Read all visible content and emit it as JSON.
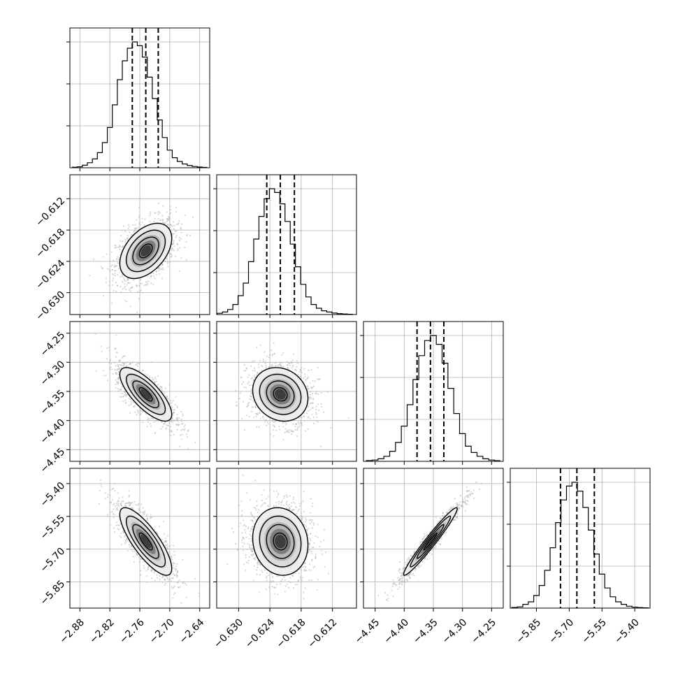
{
  "chart_data": {
    "type": "corner",
    "parameters": [
      {
        "index": 0,
        "tick_labels": [
          "−2.88",
          "−2.82",
          "−2.76",
          "−2.70",
          "−2.64"
        ],
        "ticks": [
          -2.88,
          -2.82,
          -2.76,
          -2.7,
          -2.64
        ],
        "range": [
          -2.9,
          -2.62
        ],
        "quantiles": [
          -2.775,
          -2.748,
          -2.723
        ],
        "hist_centers": [
          -2.89,
          -2.88,
          -2.87,
          -2.86,
          -2.85,
          -2.84,
          -2.83,
          -2.82,
          -2.81,
          -2.8,
          -2.79,
          -2.78,
          -2.77,
          -2.76,
          -2.75,
          -2.74,
          -2.73,
          -2.72,
          -2.71,
          -2.7,
          -2.69,
          -2.68,
          -2.67,
          -2.66,
          -2.65,
          -2.64,
          -2.63
        ],
        "hist_counts": [
          0.004,
          0.008,
          0.02,
          0.04,
          0.07,
          0.12,
          0.2,
          0.32,
          0.5,
          0.7,
          0.85,
          0.95,
          1.0,
          0.97,
          0.88,
          0.72,
          0.55,
          0.38,
          0.24,
          0.14,
          0.08,
          0.05,
          0.03,
          0.018,
          0.01,
          0.006,
          0.003
        ]
      },
      {
        "index": 1,
        "tick_labels": [
          "−0.630",
          "−0.624",
          "−0.618",
          "−0.612"
        ],
        "ticks": [
          -0.63,
          -0.624,
          -0.618,
          -0.612
        ],
        "range": [
          -0.6342,
          -0.6074
        ],
        "quantiles": [
          -0.6246,
          -0.622,
          -0.6193
        ],
        "hist_centers": [
          -0.6336,
          -0.6326,
          -0.6316,
          -0.6306,
          -0.6296,
          -0.6286,
          -0.6276,
          -0.6266,
          -0.6256,
          -0.6246,
          -0.6236,
          -0.6226,
          -0.6216,
          -0.6206,
          -0.6196,
          -0.6186,
          -0.6176,
          -0.6166,
          -0.6156,
          -0.6146,
          -0.6136,
          -0.6126,
          -0.6116,
          -0.6106,
          -0.6096,
          -0.6086
        ],
        "hist_counts": [
          0.01,
          0.02,
          0.04,
          0.08,
          0.15,
          0.25,
          0.42,
          0.6,
          0.78,
          0.92,
          1.0,
          0.97,
          0.88,
          0.74,
          0.56,
          0.38,
          0.24,
          0.14,
          0.08,
          0.05,
          0.03,
          0.02,
          0.012,
          0.007,
          0.004,
          0.002
        ]
      },
      {
        "index": 2,
        "tick_labels": [
          "−4.45",
          "−4.40",
          "−4.35",
          "−4.30",
          "−4.25"
        ],
        "ticks": [
          -4.45,
          -4.4,
          -4.35,
          -4.3,
          -4.25
        ],
        "range": [
          -4.47,
          -4.23
        ],
        "quantiles": [
          -4.378,
          -4.355,
          -4.332
        ],
        "hist_centers": [
          -4.46,
          -4.45,
          -4.44,
          -4.43,
          -4.42,
          -4.41,
          -4.4,
          -4.39,
          -4.38,
          -4.37,
          -4.36,
          -4.35,
          -4.34,
          -4.33,
          -4.32,
          -4.31,
          -4.3,
          -4.29,
          -4.28,
          -4.27,
          -4.26,
          -4.25,
          -4.24
        ],
        "hist_counts": [
          0.006,
          0.01,
          0.02,
          0.04,
          0.08,
          0.15,
          0.28,
          0.45,
          0.65,
          0.84,
          0.96,
          1.0,
          0.93,
          0.78,
          0.58,
          0.38,
          0.22,
          0.12,
          0.07,
          0.04,
          0.02,
          0.01,
          0.005
        ]
      },
      {
        "index": 3,
        "tick_labels": [
          "−5.85",
          "−5.70",
          "−5.55",
          "−5.40"
        ],
        "ticks": [
          -5.85,
          -5.7,
          -5.55,
          -5.4
        ],
        "range": [
          -5.97,
          -5.33
        ],
        "quantiles": [
          -5.74,
          -5.665,
          -5.585
        ],
        "hist_centers": [
          -5.95,
          -5.925,
          -5.9,
          -5.875,
          -5.85,
          -5.825,
          -5.8,
          -5.775,
          -5.75,
          -5.725,
          -5.7,
          -5.675,
          -5.65,
          -5.625,
          -5.6,
          -5.575,
          -5.55,
          -5.525,
          -5.5,
          -5.475,
          -5.45,
          -5.425,
          -5.4,
          -5.375,
          -5.35
        ],
        "hist_counts": [
          0.005,
          0.01,
          0.03,
          0.05,
          0.1,
          0.18,
          0.3,
          0.48,
          0.68,
          0.86,
          0.97,
          1.0,
          0.93,
          0.8,
          0.62,
          0.43,
          0.27,
          0.16,
          0.09,
          0.05,
          0.03,
          0.015,
          0.008,
          0.004,
          0.002
        ]
      }
    ],
    "pairs": [
      {
        "row": 1,
        "col": 0,
        "correlation": 0.45
      },
      {
        "row": 2,
        "col": 0,
        "correlation": -0.75
      },
      {
        "row": 2,
        "col": 1,
        "correlation": -0.15
      },
      {
        "row": 3,
        "col": 0,
        "correlation": -0.8
      },
      {
        "row": 3,
        "col": 1,
        "correlation": -0.1
      },
      {
        "row": 3,
        "col": 2,
        "correlation": 0.97
      }
    ],
    "grid": true,
    "colors": {
      "line": "#000000",
      "grid": "#b0b0b0",
      "points": "#b4b4b4"
    }
  }
}
